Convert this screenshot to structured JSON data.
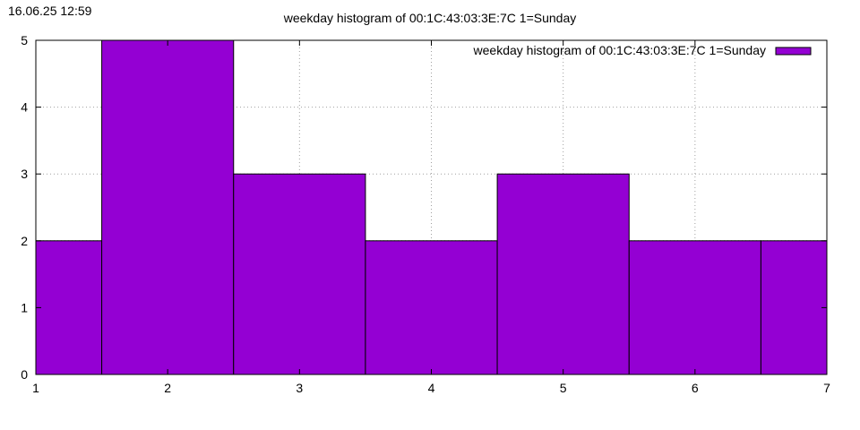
{
  "timestamp": "16.06.25 12:59",
  "chart_data": {
    "type": "bar",
    "title": "weekday histogram of 00:1C:43:03:3E:7C 1=Sunday",
    "xlabel": "",
    "ylabel": "",
    "categories": [
      "1",
      "2",
      "3",
      "4",
      "5",
      "6",
      "7"
    ],
    "x": [
      1,
      2,
      3,
      4,
      5,
      6,
      7
    ],
    "series": [
      {
        "name": "weekday histogram of 00:1C:43:03:3E:7C 1=Sunday",
        "values": [
          2,
          5,
          3,
          2,
          3,
          2,
          2
        ],
        "color": "#9400d3"
      }
    ],
    "xlim": [
      1,
      7
    ],
    "ylim": [
      0,
      5
    ],
    "xticks": [
      "1",
      "2",
      "3",
      "4",
      "5",
      "6",
      "7"
    ],
    "yticks": [
      "0",
      "1",
      "2",
      "3",
      "4",
      "5"
    ],
    "bar_width": 1,
    "grid": true,
    "legend_position": "top-right"
  }
}
